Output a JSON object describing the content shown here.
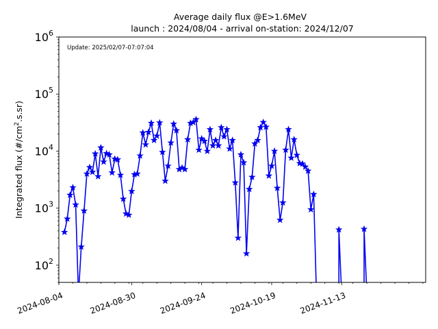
{
  "chart_data": {
    "type": "line",
    "title_line1": "Average daily flux @E>1.6MeV",
    "title_line2": "launch : 2024/08/04 - arrival on-station: 2024/12/07",
    "ylabel_prefix": "Integrated flux (#/cm",
    "ylabel_sup": "2",
    "ylabel_suffix": ".s.sr)",
    "annotation": "Update: 2025/02/07-07:07:04",
    "yscale": "log",
    "ylim": [
      50,
      1000000
    ],
    "xlim": [
      "2024-08-04",
      "2024-12-13"
    ],
    "x_tick_labels": [
      "2024-08-04",
      "2024-08-30",
      "2024-09-24",
      "2024-10-19",
      "2024-11-13"
    ],
    "y_tick_labels": [
      {
        "base": "10",
        "exp": "2",
        "value": 100
      },
      {
        "base": "10",
        "exp": "3",
        "value": 1000
      },
      {
        "base": "10",
        "exp": "4",
        "value": 10000
      },
      {
        "base": "10",
        "exp": "5",
        "value": 100000
      },
      {
        "base": "10",
        "exp": "6",
        "value": 1000000
      }
    ],
    "line_color": "#0000ee",
    "grid": false,
    "series": [
      {
        "marker": "star",
        "points": [
          [
            "2024-08-06",
            380
          ],
          [
            "2024-08-07",
            650
          ],
          [
            "2024-08-08",
            1700
          ],
          [
            "2024-08-09",
            2300
          ],
          [
            "2024-08-10",
            1150
          ],
          [
            "2024-08-11",
            30
          ],
          [
            "2024-08-12",
            210
          ],
          [
            "2024-08-13",
            900
          ],
          [
            "2024-08-14",
            4000
          ],
          [
            "2024-08-15",
            5200
          ],
          [
            "2024-08-16",
            4300
          ],
          [
            "2024-08-17",
            9000
          ],
          [
            "2024-08-18",
            3600
          ],
          [
            "2024-08-19",
            11500
          ],
          [
            "2024-08-20",
            6500
          ],
          [
            "2024-08-21",
            9100
          ],
          [
            "2024-08-22",
            8700
          ],
          [
            "2024-08-23",
            4200
          ],
          [
            "2024-08-24",
            7300
          ],
          [
            "2024-08-25",
            7100
          ],
          [
            "2024-08-26",
            3800
          ],
          [
            "2024-08-27",
            1450
          ],
          [
            "2024-08-28",
            800
          ],
          [
            "2024-08-29",
            760
          ],
          [
            "2024-08-30",
            1980
          ],
          [
            "2024-08-31",
            3900
          ],
          [
            "2024-09-01",
            4000
          ],
          [
            "2024-09-02",
            8300
          ],
          [
            "2024-09-03",
            21000
          ],
          [
            "2024-09-04",
            13000
          ],
          [
            "2024-09-05",
            21500
          ],
          [
            "2024-09-06",
            31000
          ],
          [
            "2024-09-07",
            15500
          ],
          [
            "2024-09-08",
            18500
          ],
          [
            "2024-09-09",
            31500
          ],
          [
            "2024-09-10",
            9600
          ],
          [
            "2024-09-11",
            3000
          ],
          [
            "2024-09-12",
            5500
          ],
          [
            "2024-09-13",
            14000
          ],
          [
            "2024-09-14",
            30000
          ],
          [
            "2024-09-15",
            23000
          ],
          [
            "2024-09-16",
            4800
          ],
          [
            "2024-09-17",
            5100
          ],
          [
            "2024-09-18",
            4800
          ],
          [
            "2024-09-19",
            16000
          ],
          [
            "2024-09-20",
            31000
          ],
          [
            "2024-09-21",
            32000
          ],
          [
            "2024-09-22",
            36000
          ],
          [
            "2024-09-23",
            10500
          ],
          [
            "2024-09-24",
            16500
          ],
          [
            "2024-09-25",
            15000
          ],
          [
            "2024-09-26",
            10000
          ],
          [
            "2024-09-27",
            24000
          ],
          [
            "2024-09-28",
            12500
          ],
          [
            "2024-09-29",
            15500
          ],
          [
            "2024-09-30",
            12500
          ],
          [
            "2024-10-01",
            26000
          ],
          [
            "2024-10-02",
            18000
          ],
          [
            "2024-10-03",
            24000
          ],
          [
            "2024-10-04",
            11000
          ],
          [
            "2024-10-05",
            15500
          ],
          [
            "2024-10-06",
            2800
          ],
          [
            "2024-10-07",
            300
          ],
          [
            "2024-10-08",
            8700
          ],
          [
            "2024-10-09",
            6300
          ],
          [
            "2024-10-10",
            160
          ],
          [
            "2024-10-11",
            2150
          ],
          [
            "2024-10-12",
            3500
          ],
          [
            "2024-10-13",
            13500
          ],
          [
            "2024-10-14",
            15500
          ],
          [
            "2024-10-15",
            26000
          ],
          [
            "2024-10-16",
            32000
          ],
          [
            "2024-10-17",
            26500
          ],
          [
            "2024-10-18",
            3700
          ],
          [
            "2024-10-19",
            5500
          ],
          [
            "2024-10-20",
            10000
          ],
          [
            "2024-10-21",
            2250
          ],
          [
            "2024-10-22",
            620
          ],
          [
            "2024-10-23",
            1250
          ],
          [
            "2024-10-24",
            10500
          ],
          [
            "2024-10-25",
            24000
          ],
          [
            "2024-10-26",
            7600
          ],
          [
            "2024-10-27",
            16000
          ],
          [
            "2024-10-28",
            8500
          ],
          [
            "2024-10-29",
            6100
          ],
          [
            "2024-10-30",
            6000
          ],
          [
            "2024-10-31",
            5300
          ],
          [
            "2024-11-01",
            4500
          ],
          [
            "2024-11-02",
            950
          ],
          [
            "2024-11-03",
            1750
          ],
          [
            "2024-11-04",
            30
          ],
          [
            "2024-11-12",
            30
          ],
          [
            "2024-11-12",
            420
          ],
          [
            "2024-11-13",
            30
          ],
          [
            "2024-11-21",
            30
          ],
          [
            "2024-11-21",
            430
          ],
          [
            "2024-11-22",
            30
          ]
        ]
      }
    ]
  }
}
